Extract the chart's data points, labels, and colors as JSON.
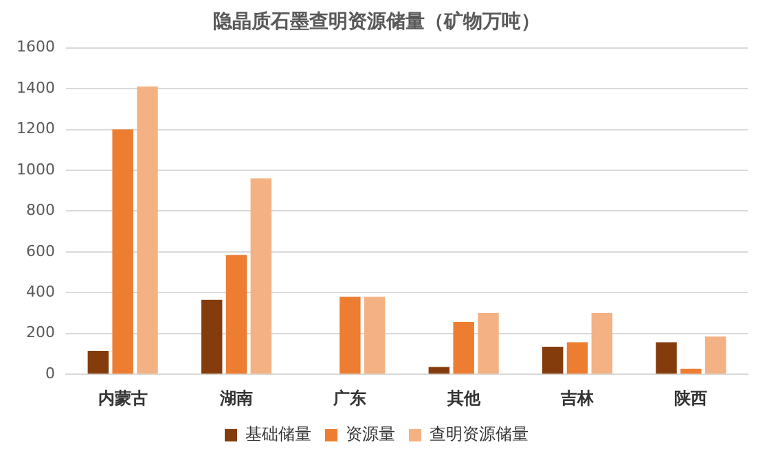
{
  "chart_data": {
    "type": "bar",
    "title": "隐晶质石墨查明资源储量（矿物万吨）",
    "categories": [
      "内蒙古",
      "湖南",
      "广东",
      "其他",
      "吉林",
      "陕西"
    ],
    "series": [
      {
        "name": "基础储量",
        "color": "#843c0c",
        "values": [
          115,
          365,
          0,
          36,
          135,
          157
        ]
      },
      {
        "name": "资源量",
        "color": "#ed7d31",
        "values": [
          1200,
          585,
          380,
          256,
          157,
          28
        ]
      },
      {
        "name": "查明资源储量",
        "color": "#f4b183",
        "values": [
          1410,
          960,
          380,
          300,
          300,
          185
        ]
      }
    ],
    "ylim": [
      0,
      1600
    ],
    "yticks": [
      0,
      200,
      400,
      600,
      800,
      1000,
      1200,
      1400,
      1600
    ],
    "grid": "y",
    "legend": "bottom"
  }
}
